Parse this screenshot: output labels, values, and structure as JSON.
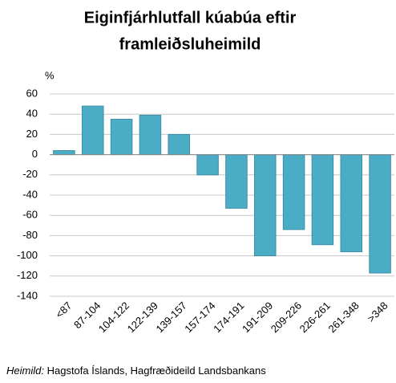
{
  "chart_data": {
    "type": "bar",
    "title": [
      "Eiginfjárhlutfall kúabúa eftir",
      "framleiðsluheimild"
    ],
    "y_label": "%",
    "categories": [
      "<87",
      "87-104",
      "104-122",
      "122-139",
      "139-157",
      "157-174",
      "174-191",
      "191-209",
      "209-226",
      "226-261",
      "261-348",
      ">348"
    ],
    "values": [
      4,
      48,
      35,
      39,
      20,
      -20,
      -53,
      -100,
      -74,
      -89,
      -96,
      -117
    ],
    "color": "#4bacc6",
    "ylim": [
      -140,
      60
    ],
    "yticks": [
      -140,
      -120,
      -100,
      -80,
      -60,
      -40,
      -20,
      0,
      20,
      40,
      60
    ],
    "grid": true,
    "source_label": "Heimild:",
    "source": "Hagstofa Íslands, Hagfræðideild Landsbankans"
  }
}
